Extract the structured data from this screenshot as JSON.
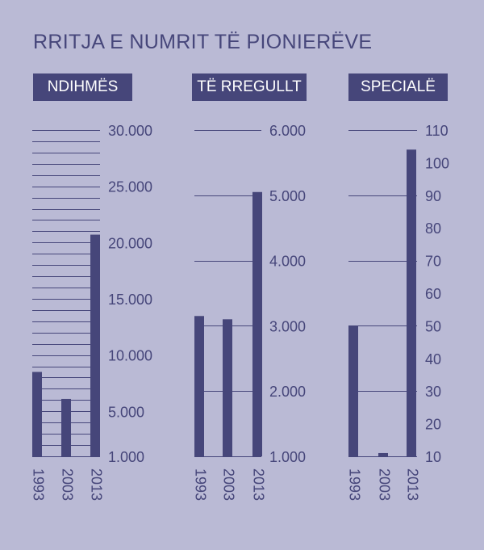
{
  "title": "RRITJA E NUMRIT TË PIONIERËVE",
  "colors": {
    "background": "#babad5",
    "bars": "#46467a",
    "text": "#46467a",
    "header_text": "#ffffff"
  },
  "chart_data": [
    {
      "type": "bar",
      "title": "NDIHMËS",
      "categories": [
        "1993",
        "2003",
        "2013"
      ],
      "values": [
        8500,
        6100,
        20700
      ],
      "ylim": [
        1000,
        30000
      ],
      "yticks": [
        1000,
        5000,
        10000,
        15000,
        20000,
        25000,
        30000
      ],
      "ytick_labels": [
        "1.000",
        "5.000",
        "10.000",
        "15.000",
        "20.000",
        "25.000",
        "30.000"
      ],
      "grid_step": 1000,
      "grid": true
    },
    {
      "type": "bar",
      "title": "TË RREGULLT",
      "categories": [
        "1993",
        "2003",
        "2013"
      ],
      "values": [
        3150,
        3100,
        5050
      ],
      "ylim": [
        1000,
        6000
      ],
      "yticks": [
        1000,
        2000,
        3000,
        4000,
        5000,
        6000
      ],
      "ytick_labels": [
        "1.000",
        "2.000",
        "3.000",
        "4.000",
        "5.000",
        "6.000"
      ],
      "grid_step": 1000,
      "grid": true
    },
    {
      "type": "bar",
      "title": "SPECIALË",
      "categories": [
        "1993",
        "2003",
        "2013"
      ],
      "values": [
        50,
        11,
        104
      ],
      "ylim": [
        10,
        110
      ],
      "yticks": [
        10,
        20,
        30,
        40,
        50,
        60,
        70,
        80,
        90,
        100,
        110
      ],
      "ytick_labels": [
        "10",
        "20",
        "30",
        "40",
        "50",
        "60",
        "70",
        "80",
        "90",
        "100",
        "110"
      ],
      "grid_step": 20,
      "grid": true
    }
  ]
}
